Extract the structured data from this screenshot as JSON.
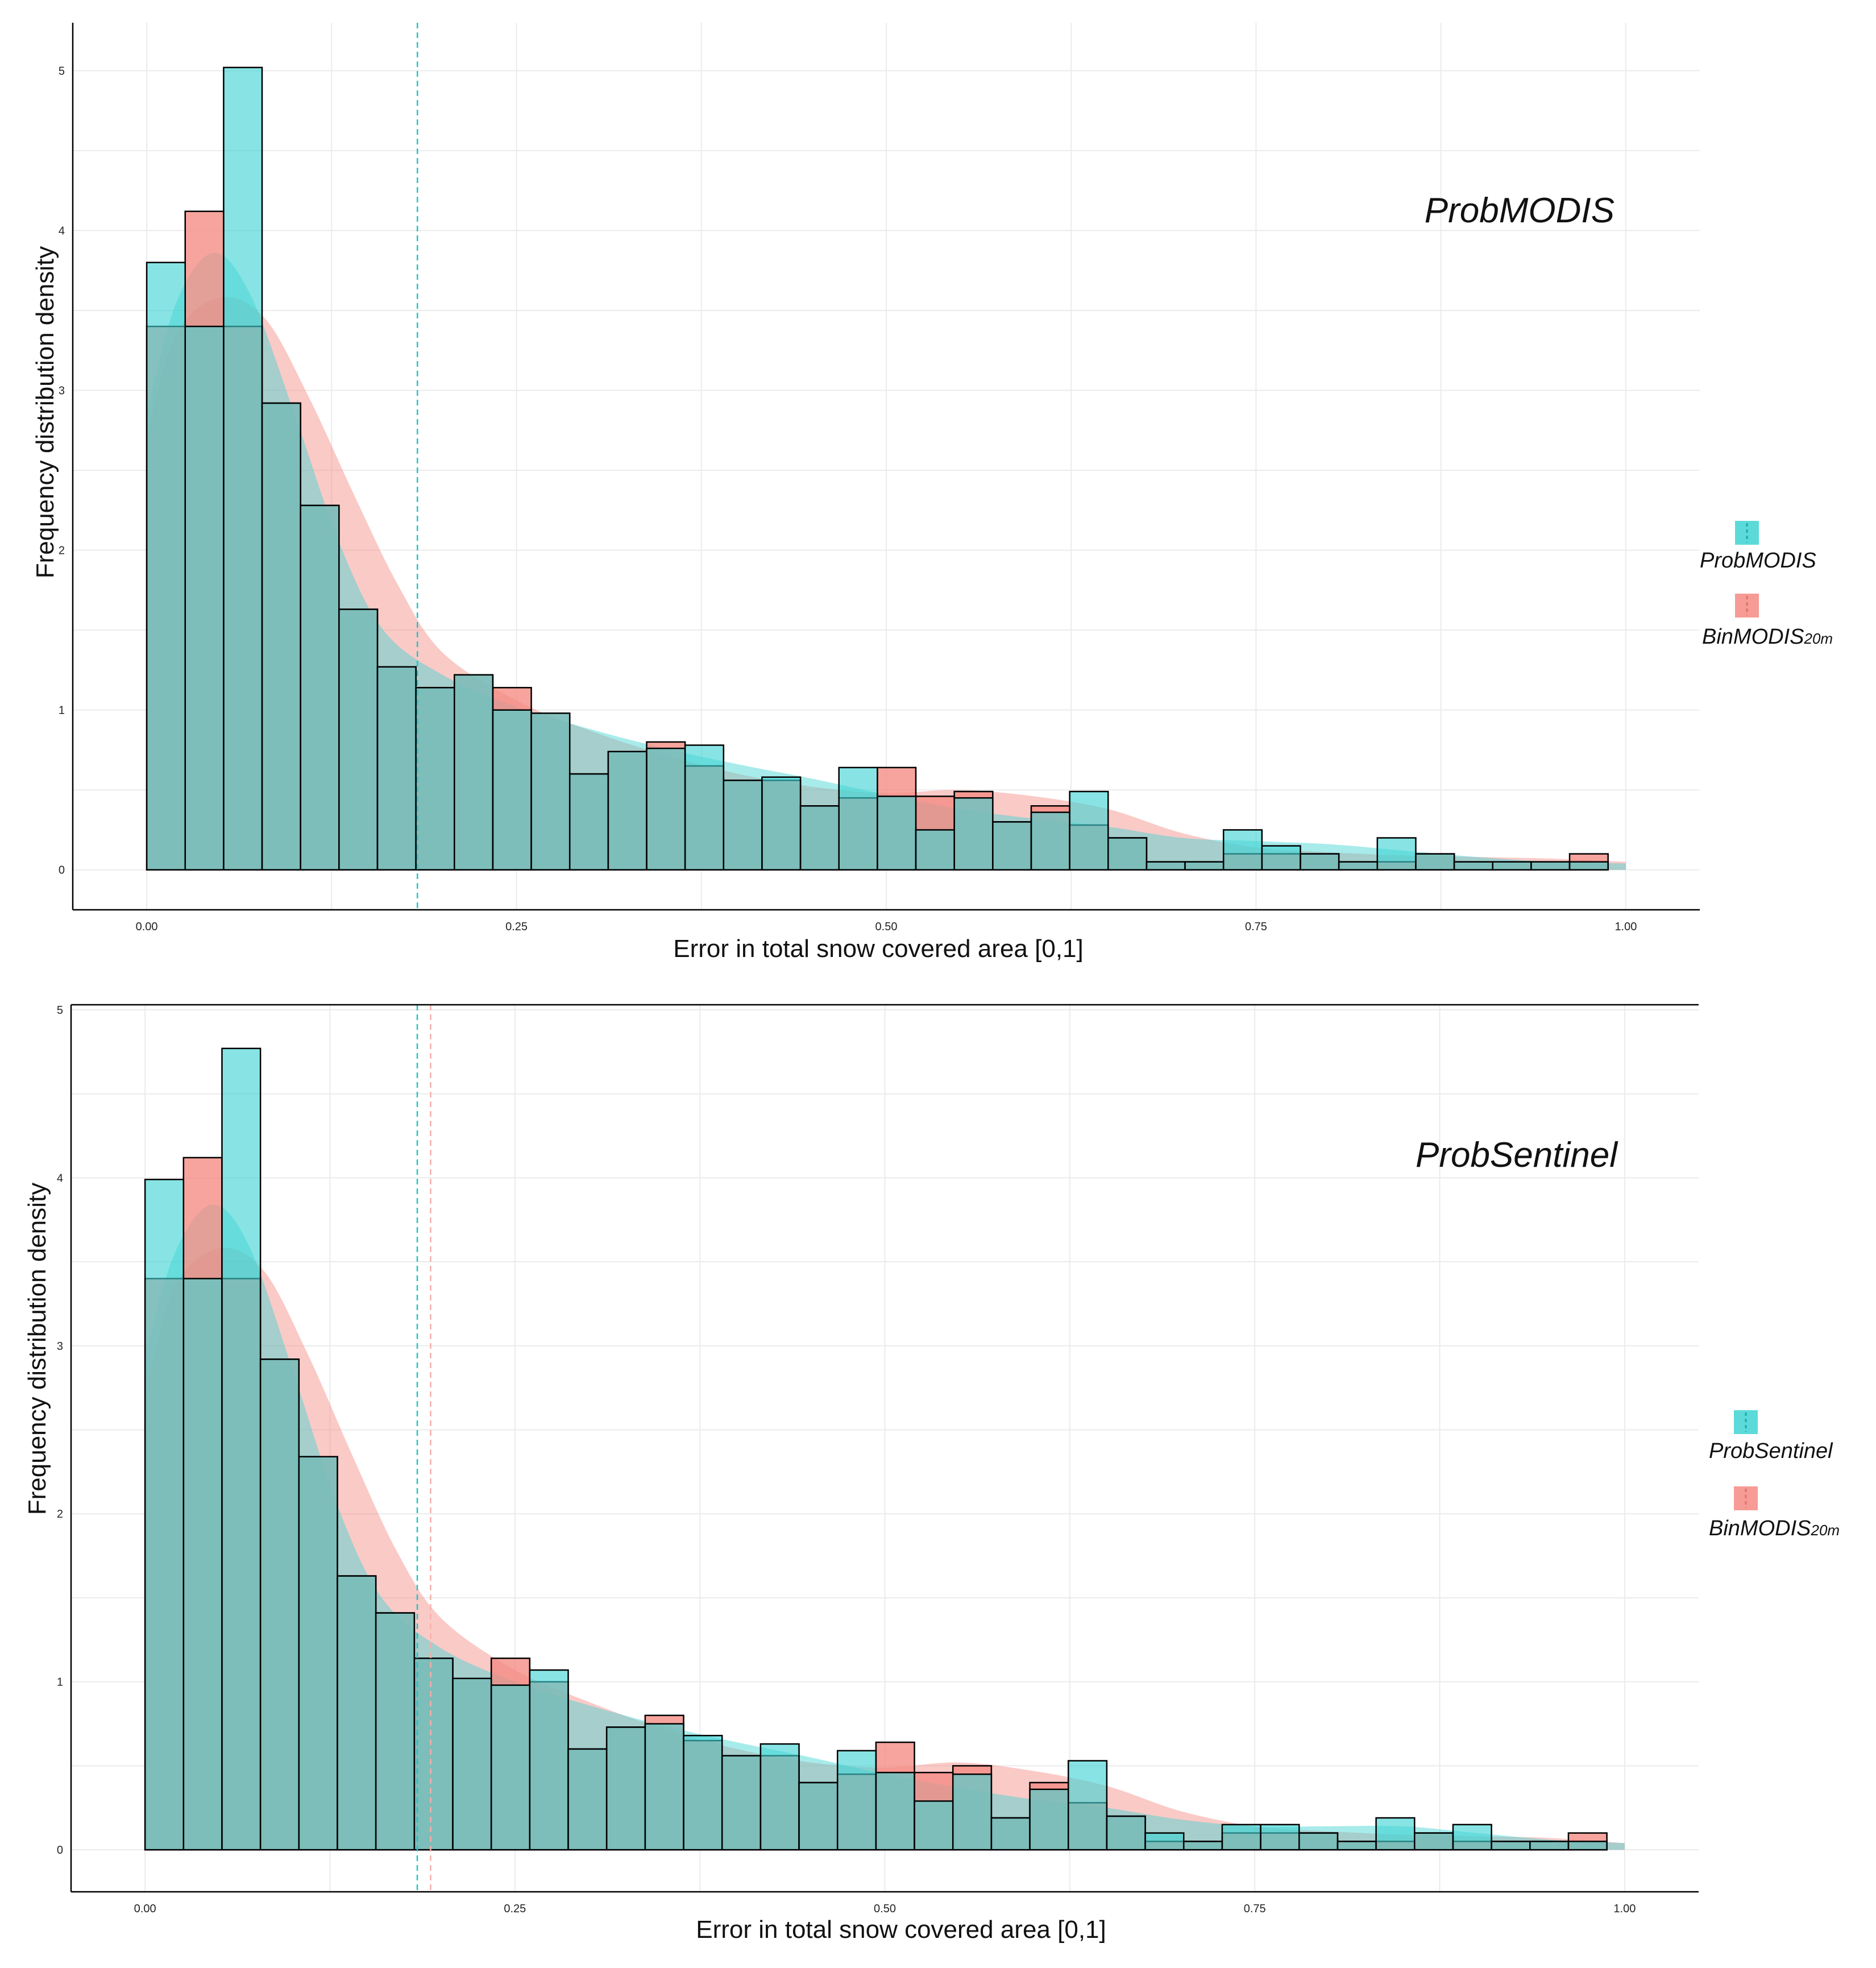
{
  "chart_data": [
    {
      "type": "histogram",
      "title": "ProbMODIS",
      "xlabel": "Error in total snow covered area [0,1]",
      "ylabel": "Frequency distribution density",
      "xlim": [
        -0.05,
        1.05
      ],
      "ylim": [
        -0.25,
        5.3
      ],
      "xticks": [
        0.0,
        0.25,
        0.5,
        0.75,
        1.0
      ],
      "xtick_labels": [
        "0.00",
        "0.25",
        "0.50",
        "0.75",
        "1.00"
      ],
      "yticks": [
        0,
        1,
        2,
        3,
        4,
        5
      ],
      "ytick_labels": [
        "0",
        "1",
        "2",
        "3",
        "4",
        "5"
      ],
      "grid": true,
      "legend_position": "right",
      "bin_edges": [
        0.0,
        0.026,
        0.052,
        0.078,
        0.104,
        0.13,
        0.156,
        0.182,
        0.208,
        0.234,
        0.26,
        0.286,
        0.312,
        0.338,
        0.364,
        0.39,
        0.416,
        0.442,
        0.468,
        0.494,
        0.52,
        0.546,
        0.572,
        0.598,
        0.624,
        0.65,
        0.676,
        0.702,
        0.728,
        0.754,
        0.78,
        0.806,
        0.832,
        0.858,
        0.884,
        0.91,
        0.936,
        0.962,
        0.988
      ],
      "vlines": [
        {
          "x": 0.183,
          "color": "#22c4c4",
          "style": "dashed"
        }
      ],
      "series": [
        {
          "name": "ProbMODIS",
          "legend_label": "ProbMODIS",
          "color": "#3fd3d3",
          "values": [
            3.8,
            3.4,
            5.02,
            2.92,
            2.28,
            1.63,
            1.27,
            1.14,
            1.22,
            1.0,
            0.98,
            0.6,
            0.74,
            0.76,
            0.78,
            0.56,
            0.58,
            0.4,
            0.64,
            0.46,
            0.25,
            0.45,
            0.3,
            0.36,
            0.49,
            0.2,
            0.05,
            0.05,
            0.25,
            0.15,
            0.1,
            0.05,
            0.2,
            0.1,
            0.05,
            0.05,
            0.05,
            0.05
          ],
          "density_x": [
            0.0,
            0.02,
            0.045,
            0.07,
            0.1,
            0.13,
            0.16,
            0.2,
            0.25,
            0.3,
            0.35,
            0.4,
            0.45,
            0.5,
            0.55,
            0.6,
            0.65,
            0.7,
            0.75,
            0.8,
            0.85,
            0.9,
            0.95,
            1.0
          ],
          "density_y": [
            2.85,
            3.55,
            3.86,
            3.6,
            2.85,
            2.05,
            1.5,
            1.22,
            1.02,
            0.88,
            0.76,
            0.66,
            0.57,
            0.47,
            0.38,
            0.32,
            0.27,
            0.2,
            0.18,
            0.16,
            0.12,
            0.08,
            0.05,
            0.04
          ]
        },
        {
          "name": "BinMODIS20m",
          "legend_label": "BinMODIS",
          "legend_subscript": "20m",
          "color": "#f48a82",
          "values": [
            3.4,
            4.12,
            3.4,
            2.92,
            2.28,
            1.63,
            1.27,
            1.14,
            1.22,
            1.14,
            0.98,
            0.6,
            0.74,
            0.8,
            0.65,
            0.56,
            0.56,
            0.4,
            0.45,
            0.64,
            0.46,
            0.49,
            0.3,
            0.4,
            0.28,
            0.2,
            0.05,
            0.05,
            0.1,
            0.1,
            0.1,
            0.05,
            0.05,
            0.1,
            0.05,
            0.05,
            0.05,
            0.1
          ],
          "density_x": [
            0.0,
            0.02,
            0.05,
            0.08,
            0.11,
            0.14,
            0.17,
            0.2,
            0.25,
            0.3,
            0.35,
            0.4,
            0.45,
            0.5,
            0.55,
            0.6,
            0.65,
            0.7,
            0.75,
            0.8,
            0.85,
            0.9,
            0.95,
            1.0
          ],
          "density_y": [
            2.7,
            3.35,
            3.58,
            3.45,
            2.95,
            2.35,
            1.78,
            1.36,
            1.06,
            0.87,
            0.72,
            0.6,
            0.52,
            0.48,
            0.5,
            0.46,
            0.38,
            0.23,
            0.14,
            0.11,
            0.09,
            0.08,
            0.07,
            0.05
          ]
        }
      ]
    },
    {
      "type": "histogram",
      "title": "ProbSentinel",
      "xlabel": "Error in total snow covered area [0,1]",
      "ylabel": "Frequency distribution density",
      "xlim": [
        -0.05,
        1.05
      ],
      "ylim": [
        -0.25,
        5.03
      ],
      "xticks": [
        0.0,
        0.25,
        0.5,
        0.75,
        1.0
      ],
      "xtick_labels": [
        "0.00",
        "0.25",
        "0.50",
        "0.75",
        "1.00"
      ],
      "yticks": [
        0,
        1,
        2,
        3,
        4,
        5
      ],
      "ytick_labels": [
        "0",
        "1",
        "2",
        "3",
        "4",
        "5"
      ],
      "grid": true,
      "legend_position": "right",
      "bin_edges": [
        0.0,
        0.026,
        0.052,
        0.078,
        0.104,
        0.13,
        0.156,
        0.182,
        0.208,
        0.234,
        0.26,
        0.286,
        0.312,
        0.338,
        0.364,
        0.39,
        0.416,
        0.442,
        0.468,
        0.494,
        0.52,
        0.546,
        0.572,
        0.598,
        0.624,
        0.65,
        0.676,
        0.702,
        0.728,
        0.754,
        0.78,
        0.806,
        0.832,
        0.858,
        0.884,
        0.91,
        0.936,
        0.962,
        0.988
      ],
      "vlines": [
        {
          "x": 0.184,
          "color": "#22c4c4",
          "style": "dashed"
        },
        {
          "x": 0.193,
          "color": "#f4b0aa",
          "style": "dashed"
        }
      ],
      "series": [
        {
          "name": "ProbSentinel",
          "legend_label": "ProbSentinel",
          "color": "#3fd3d3",
          "values": [
            3.99,
            3.4,
            4.77,
            2.92,
            2.34,
            1.63,
            1.41,
            1.14,
            1.02,
            0.98,
            1.07,
            0.6,
            0.73,
            0.75,
            0.68,
            0.56,
            0.63,
            0.4,
            0.59,
            0.46,
            0.29,
            0.45,
            0.19,
            0.36,
            0.53,
            0.2,
            0.1,
            0.05,
            0.15,
            0.15,
            0.1,
            0.05,
            0.19,
            0.1,
            0.15,
            0.05,
            0.05,
            0.05
          ],
          "density_x": [
            0.0,
            0.02,
            0.045,
            0.07,
            0.1,
            0.13,
            0.16,
            0.2,
            0.25,
            0.3,
            0.35,
            0.4,
            0.45,
            0.5,
            0.55,
            0.6,
            0.65,
            0.7,
            0.75,
            0.8,
            0.85,
            0.9,
            0.95,
            1.0
          ],
          "density_y": [
            2.95,
            3.55,
            3.84,
            3.6,
            2.85,
            2.05,
            1.5,
            1.2,
            1.0,
            0.86,
            0.74,
            0.64,
            0.55,
            0.45,
            0.37,
            0.3,
            0.25,
            0.18,
            0.14,
            0.14,
            0.14,
            0.1,
            0.06,
            0.04
          ]
        },
        {
          "name": "BinMODIS20m",
          "legend_label": "BinMODIS",
          "legend_subscript": "20m",
          "color": "#f48a82",
          "values": [
            3.4,
            4.12,
            3.4,
            2.92,
            2.34,
            1.63,
            1.41,
            1.14,
            1.02,
            1.14,
            1.0,
            0.6,
            0.73,
            0.8,
            0.65,
            0.56,
            0.56,
            0.4,
            0.45,
            0.64,
            0.46,
            0.5,
            0.19,
            0.4,
            0.28,
            0.2,
            0.05,
            0.05,
            0.1,
            0.1,
            0.1,
            0.05,
            0.05,
            0.1,
            0.05,
            0.05,
            0.05,
            0.1
          ],
          "density_x": [
            0.0,
            0.02,
            0.05,
            0.08,
            0.11,
            0.14,
            0.17,
            0.2,
            0.25,
            0.3,
            0.35,
            0.4,
            0.45,
            0.5,
            0.55,
            0.6,
            0.65,
            0.7,
            0.75,
            0.8,
            0.85,
            0.9,
            0.95,
            1.0
          ],
          "density_y": [
            2.7,
            3.35,
            3.58,
            3.45,
            2.95,
            2.35,
            1.78,
            1.38,
            1.07,
            0.88,
            0.72,
            0.6,
            0.52,
            0.49,
            0.52,
            0.47,
            0.38,
            0.23,
            0.14,
            0.11,
            0.09,
            0.08,
            0.07,
            0.04
          ]
        }
      ]
    }
  ]
}
